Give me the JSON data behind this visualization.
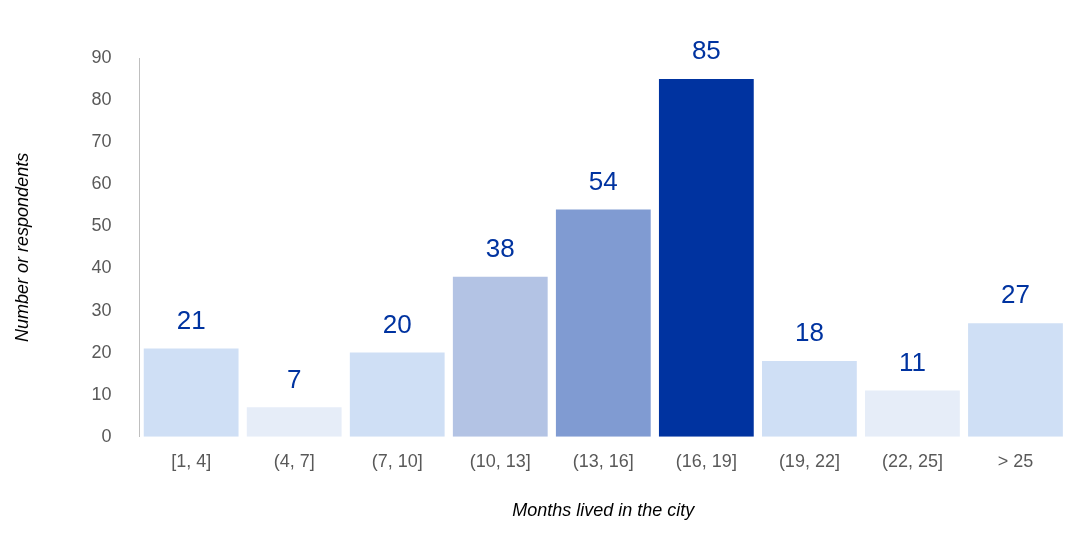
{
  "chart_data": {
    "type": "bar",
    "xlabel": "Months lived in the city",
    "ylabel": "Number or respondents",
    "categories": [
      "[1, 4]",
      "(4, 7]",
      "(7, 10]",
      "(10, 13]",
      "(13, 16]",
      "(16, 19]",
      "(19, 22]",
      "(22, 25]",
      "> 25"
    ],
    "values": [
      21,
      7,
      20,
      38,
      54,
      85,
      18,
      11,
      27
    ],
    "colors": [
      "#cfdff5",
      "#e6edf8",
      "#cfdff5",
      "#b3c3e4",
      "#809bd2",
      "#0033a0",
      "#cfdff5",
      "#e6edf8",
      "#cfdff5"
    ],
    "ylim": [
      0,
      90
    ],
    "yticks": [
      0,
      10,
      20,
      30,
      40,
      50,
      60,
      70,
      80,
      90
    ],
    "grid": false,
    "legend": false,
    "data_labels": true
  }
}
